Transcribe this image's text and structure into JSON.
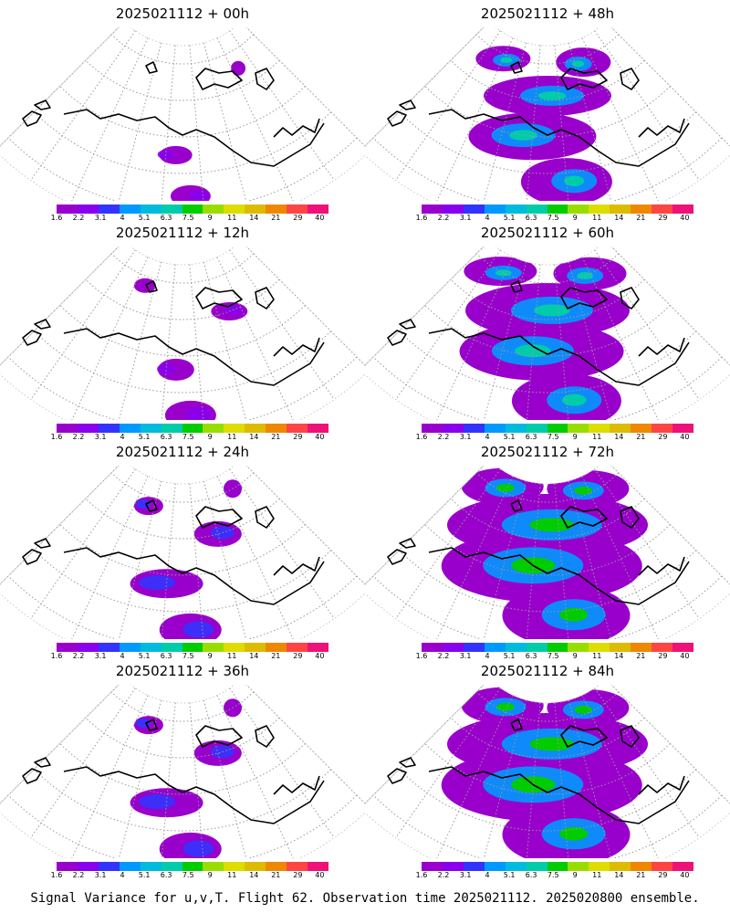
{
  "figure": {
    "caption": "Signal Variance for u,v,T. Flight 62. Observation time 2025021112. 2025020800 ensemble."
  },
  "colorbar": {
    "labels": [
      "1.6",
      "2.2",
      "3.1",
      "4",
      "5.1",
      "6.3",
      "7.5",
      "9",
      "11",
      "14",
      "21",
      "29",
      "40"
    ],
    "colors": [
      "#9900cc",
      "#8800ee",
      "#3333ff",
      "#0099ff",
      "#00bbdd",
      "#00ccaa",
      "#00cc00",
      "#99dd00",
      "#dddd00",
      "#ddbb00",
      "#ee8800",
      "#ff4444",
      "#ee1177"
    ]
  },
  "panels": [
    {
      "title": "2025021112 + 00h",
      "lead": "00h",
      "intensity": 0
    },
    {
      "title": "2025021112 + 48h",
      "lead": "48h",
      "intensity": 3
    },
    {
      "title": "2025021112 + 12h",
      "lead": "12h",
      "intensity": 1
    },
    {
      "title": "2025021112 + 60h",
      "lead": "60h",
      "intensity": 4
    },
    {
      "title": "2025021112 + 24h",
      "lead": "24h",
      "intensity": 2
    },
    {
      "title": "2025021112 + 72h",
      "lead": "72h",
      "intensity": 5
    },
    {
      "title": "2025021112 + 36h",
      "lead": "36h",
      "intensity": 2
    },
    {
      "title": "2025021112 + 84h",
      "lead": "84h",
      "intensity": 5
    }
  ]
}
